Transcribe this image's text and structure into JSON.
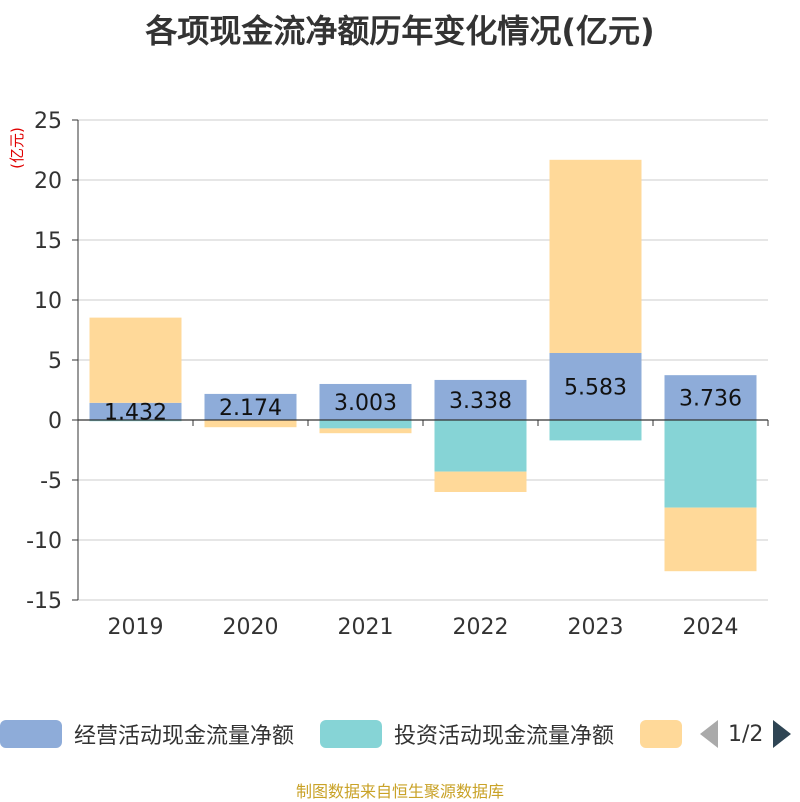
{
  "title": "各项现金流净额历年变化情况(亿元)",
  "source": "制图数据来自恒生聚源数据库",
  "legend": {
    "items": [
      {
        "name": "经营活动现金流量净额",
        "color": "#8eacd9"
      },
      {
        "name": "投资活动现金流量净额",
        "color": "#86d4d6"
      },
      {
        "name": "",
        "color": "#ffd999"
      }
    ],
    "page": "1/2"
  },
  "chart_data": {
    "type": "bar",
    "stacked": true,
    "categories": [
      "2019",
      "2020",
      "2021",
      "2022",
      "2023",
      "2024"
    ],
    "ylabel": "(亿元)",
    "ylim": [
      -15,
      25
    ],
    "yticks": [
      25,
      20,
      15,
      10,
      5,
      0,
      -5,
      -10,
      -15
    ],
    "grid": true,
    "series": [
      {
        "name": "经营活动现金流量净额",
        "color": "#8eacd9",
        "values": [
          1.432,
          2.174,
          3.003,
          3.338,
          5.583,
          3.736
        ],
        "labels": [
          "1.432",
          "2.174",
          "3.003",
          "3.338",
          "5.583",
          "3.736"
        ]
      },
      {
        "name": "投资活动现金流量净额",
        "color": "#86d4d6",
        "values": [
          -0.1,
          0.0,
          -0.7,
          -4.3,
          -1.7,
          -7.3
        ]
      },
      {
        "color": "#ffd999",
        "values": [
          7.1,
          -0.6,
          -0.4,
          -1.7,
          16.1,
          -5.3
        ]
      }
    ]
  }
}
